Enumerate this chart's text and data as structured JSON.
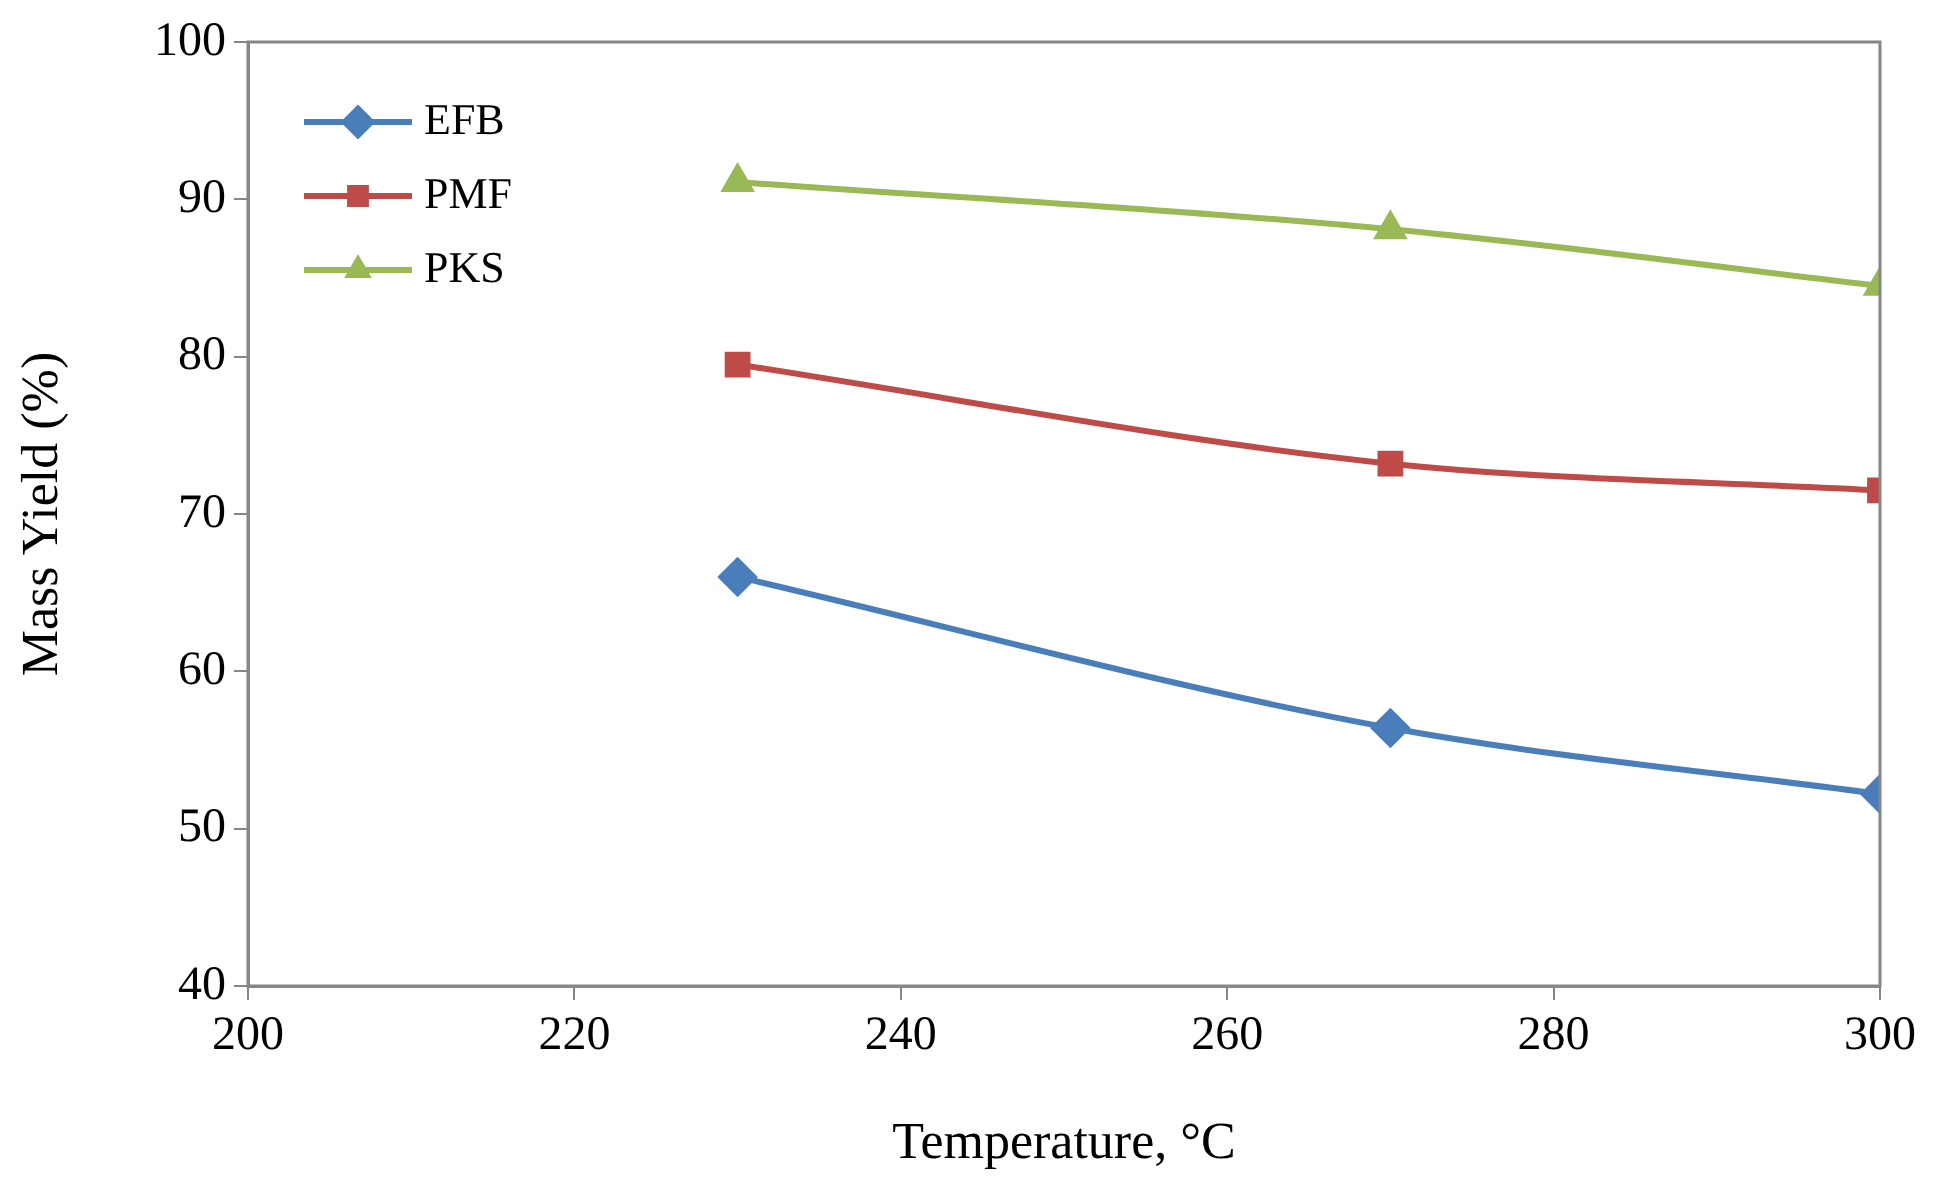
{
  "chart_data": {
    "type": "line",
    "xlabel": "Temperature, °C",
    "ylabel": "Mass Yield (%)",
    "x": [
      230,
      270,
      300
    ],
    "series": [
      {
        "name": "EFB",
        "color": "#4a7ebb",
        "values": [
          66,
          56.4,
          52.2
        ],
        "marker": "diamond"
      },
      {
        "name": "PMF",
        "color": "#be4b48",
        "values": [
          79.5,
          73.2,
          71.5
        ],
        "marker": "square"
      },
      {
        "name": "PKS",
        "color": "#98b954",
        "values": [
          91.1,
          88.1,
          84.5
        ],
        "marker": "triangle"
      }
    ],
    "xlim": [
      200,
      300
    ],
    "xticks": [
      200,
      220,
      240,
      260,
      280,
      300
    ],
    "ylim": [
      40,
      100
    ],
    "yticks": [
      40,
      50,
      60,
      70,
      80,
      90,
      100
    ],
    "grid": false,
    "legend": "top left"
  }
}
